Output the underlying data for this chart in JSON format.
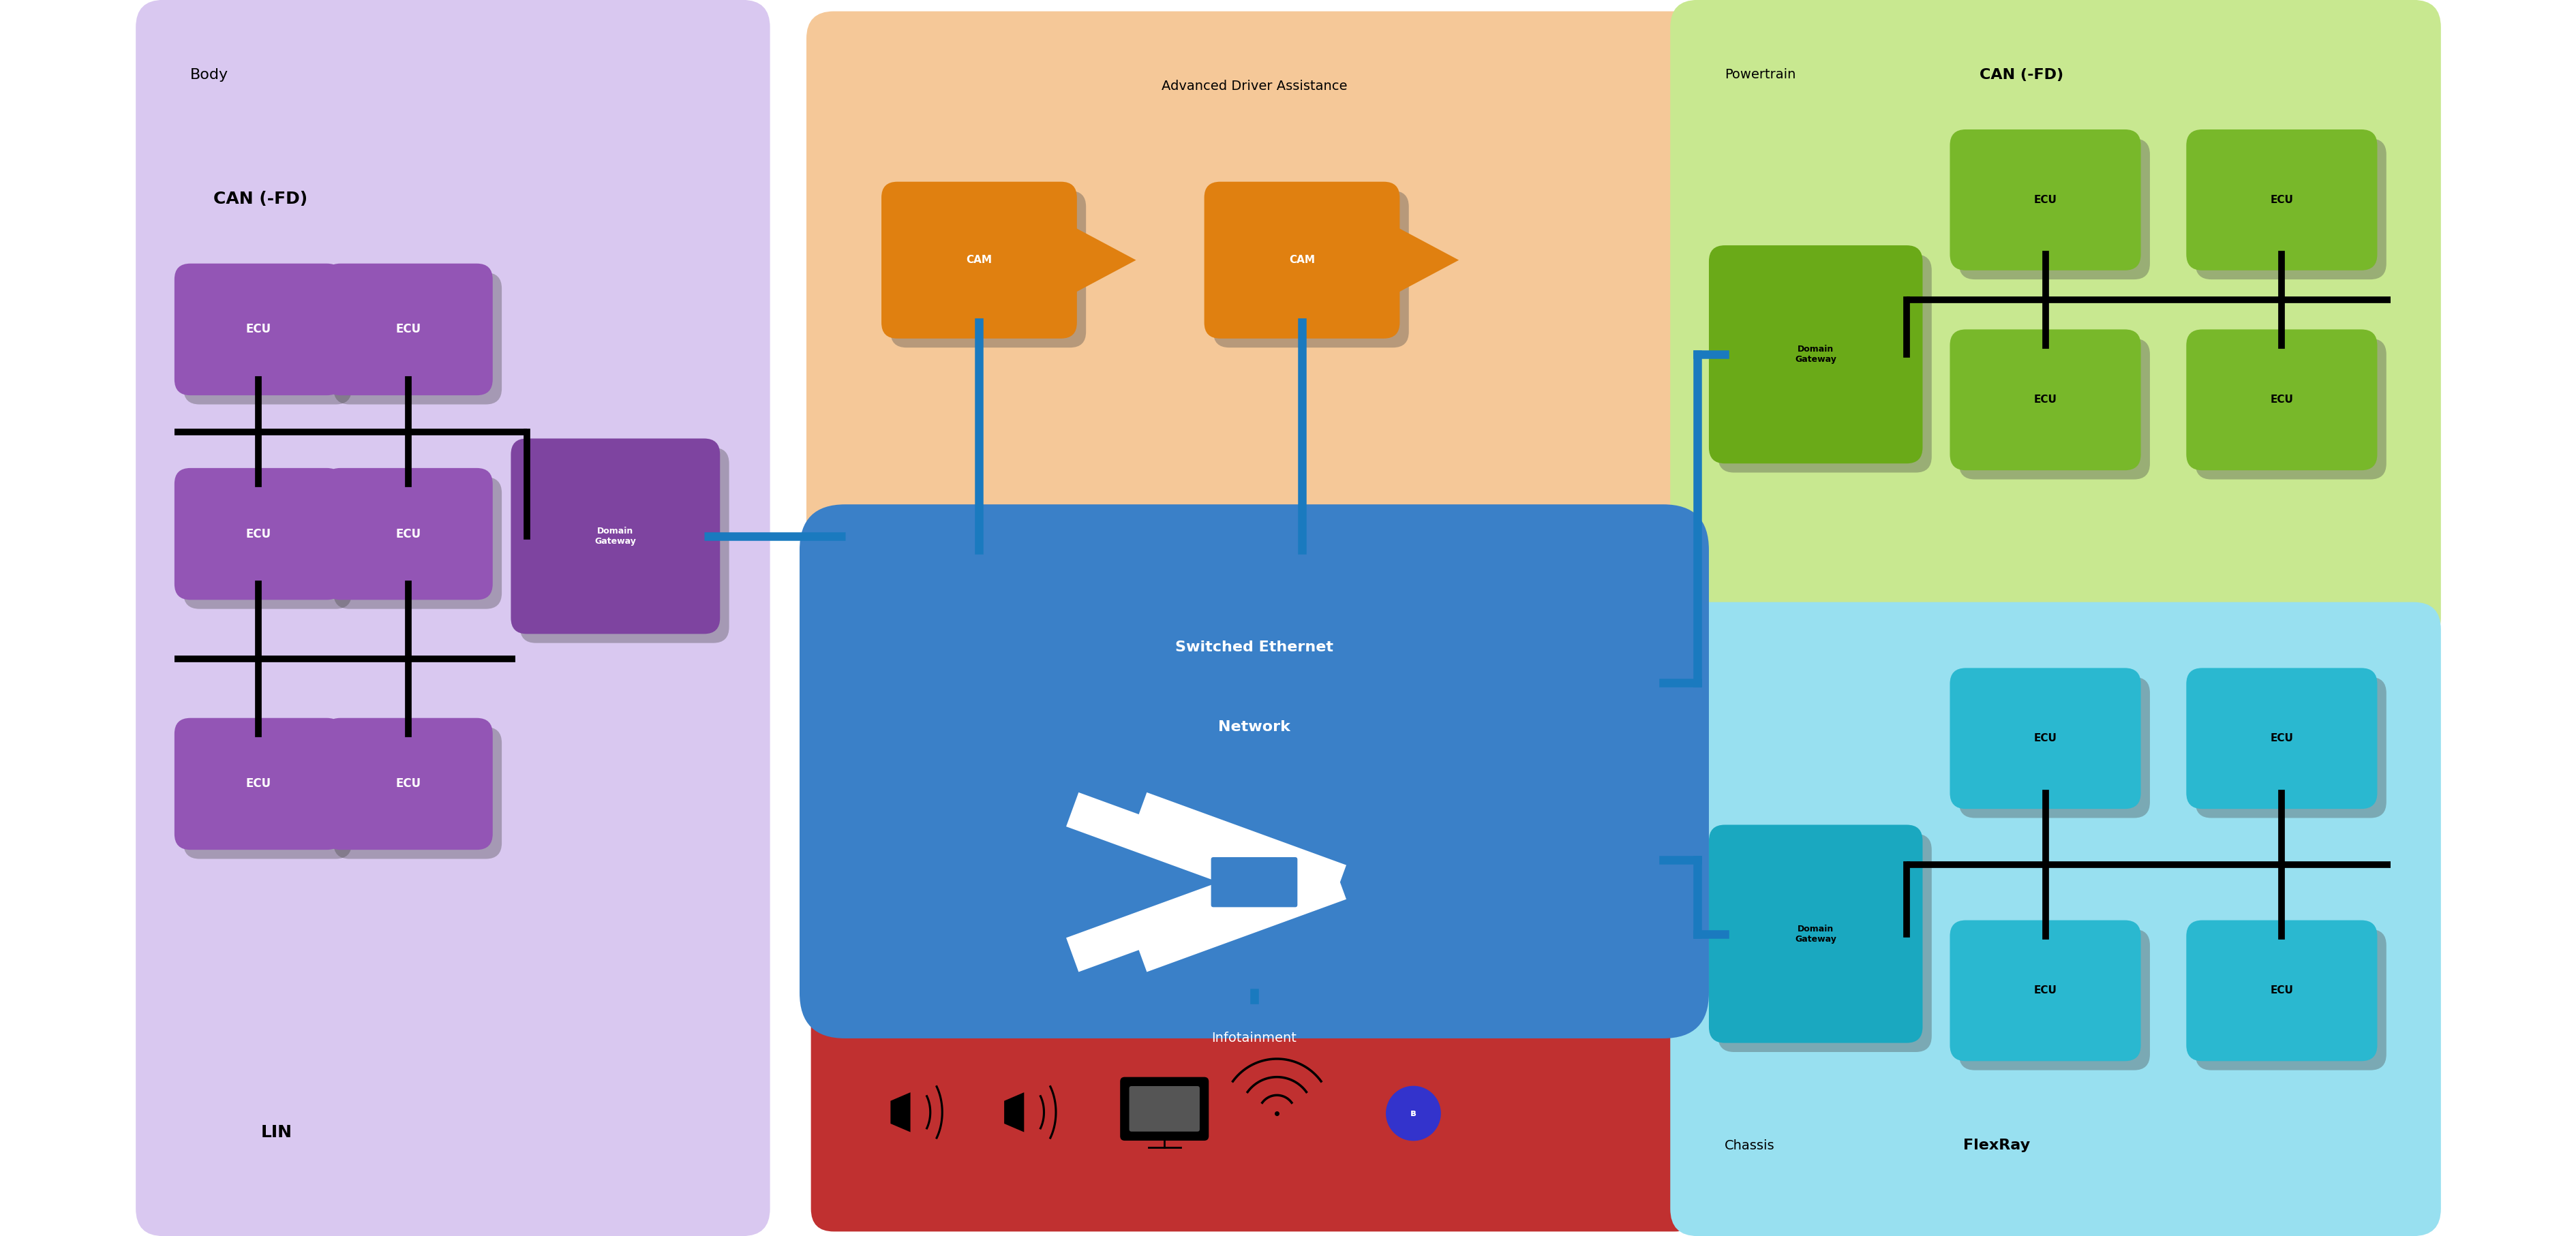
{
  "fig_width": 37.8,
  "fig_height": 18.14,
  "bg_color": "#ffffff",
  "body_bg": "#d9c8f0",
  "body_label": "Body",
  "body_can_label": "CAN (-FD)",
  "body_lin_label": "LIN",
  "ecu_color_body": "#9355b5",
  "ecu_color_powertrain": "#78b82a",
  "ecu_color_chassis": "#2ab8d0",
  "gateway_color_body": "#7e44a0",
  "gateway_color_powertrain": "#6aaa18",
  "gateway_color_chassis": "#1aa8c0",
  "advanced_bg": "#f5c898",
  "advanced_label": "Advanced Driver Assistance",
  "cam_color": "#e08010",
  "powertrain_bg": "#c8e890",
  "powertrain_label": "Powertrain",
  "powertrain_can_label": "CAN (-FD)",
  "switch_color": "#3a80c8",
  "switch_label_line1": "Switched Ethernet",
  "switch_label_line2": "Network",
  "infotainment_bg": "#c03030",
  "infotainment_label": "Infotainment",
  "chassis_bg": "#98e0f0",
  "chassis_label": "Chassis",
  "chassis_flexray_label": "FlexRay",
  "line_color": "#1a7abf",
  "bus_color": "#000000",
  "bus_lw": 7,
  "eth_lw": 9
}
